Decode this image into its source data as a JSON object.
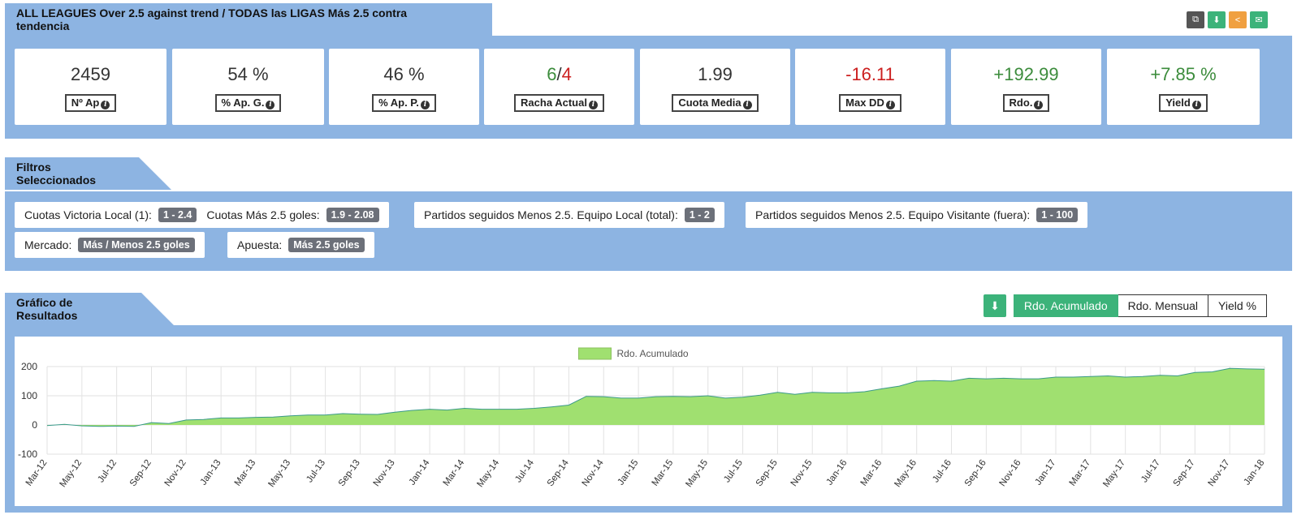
{
  "header": {
    "title": "ALL LEAGUES Over 2.5 against trend / TODAS las LIGAS Más 2.5 contra tendencia",
    "icons": [
      "copy-icon",
      "download-icon",
      "share-icon",
      "email-icon"
    ],
    "icon_colors": [
      "#555555",
      "#3cb37a",
      "#f0a040",
      "#3cb37a"
    ]
  },
  "stats": [
    {
      "value": "2459",
      "label": "Nº Ap"
    },
    {
      "value": "54 %",
      "label": "% Ap. G."
    },
    {
      "value": "46 %",
      "label": "% Ap. P."
    },
    {
      "value_a": "6",
      "sep": "/",
      "value_b": "4",
      "label": "Racha Actual"
    },
    {
      "value": "1.99",
      "label": "Cuota Media"
    },
    {
      "value": "-16.11",
      "label": "Max DD"
    },
    {
      "value": "+192.99",
      "label": "Rdo."
    },
    {
      "value": "+7.85 %",
      "label": "Yield"
    }
  ],
  "filters": {
    "title": "Filtros Seleccionados",
    "chips": [
      {
        "parts": [
          {
            "label": "Cuotas Victoria Local (1):",
            "value": "1 - 2.4"
          },
          {
            "label": "Cuotas Más 2.5 goles:",
            "value": "1.9 - 2.08"
          }
        ]
      },
      {
        "parts": [
          {
            "label": "Partidos seguidos Menos 2.5. Equipo Local (total):",
            "value": "1 - 2"
          }
        ]
      },
      {
        "parts": [
          {
            "label": "Partidos seguidos Menos 2.5. Equipo Visitante (fuera):",
            "value": "1 - 100"
          }
        ]
      },
      {
        "parts": [
          {
            "label": "Mercado:",
            "value": "Más / Menos 2.5 goles"
          }
        ]
      },
      {
        "parts": [
          {
            "label": "Apuesta:",
            "value": "Más 2.5 goles"
          }
        ]
      }
    ]
  },
  "results": {
    "title": "Gráfico de Resultados",
    "buttons": [
      "Rdo. Acumulado",
      "Rdo. Mensual",
      "Yield %"
    ],
    "active_button": "Rdo. Acumulado"
  },
  "chart_data": {
    "type": "area",
    "legend": "Rdo. Acumulado",
    "legend_position": "top-center",
    "series_color": "#a0e070",
    "ylim": [
      -100,
      200
    ],
    "yticks": [
      200,
      100,
      0,
      -100
    ],
    "grid": true,
    "x_tick_labels": [
      "Mar-12",
      "May-12",
      "Jul-12",
      "Sep-12",
      "Nov-12",
      "Jan-13",
      "Mar-13",
      "May-13",
      "Jul-13",
      "Sep-13",
      "Nov-13",
      "Jan-14",
      "Mar-14",
      "May-14",
      "Jul-14",
      "Sep-14",
      "Nov-14",
      "Jan-15",
      "Mar-15",
      "May-15",
      "Jul-15",
      "Sep-15",
      "Nov-15",
      "Jan-16",
      "Mar-16",
      "May-16",
      "Jul-16",
      "Sep-16",
      "Nov-16",
      "Jan-17",
      "Mar-17",
      "May-17",
      "Jul-17",
      "Sep-17",
      "Nov-17",
      "Jan-18"
    ],
    "values": [
      -2,
      2,
      -3,
      -5,
      -4,
      -5,
      8,
      5,
      17,
      19,
      24,
      24,
      26,
      27,
      31,
      34,
      34,
      39,
      37,
      36,
      44,
      50,
      54,
      51,
      57,
      54,
      54,
      54,
      57,
      62,
      68,
      98,
      97,
      92,
      92,
      97,
      98,
      97,
      100,
      92,
      95,
      102,
      112,
      105,
      112,
      110,
      110,
      114,
      124,
      133,
      150,
      152,
      150,
      160,
      158,
      160,
      158,
      158,
      164,
      164,
      166,
      168,
      164,
      166,
      170,
      168,
      180,
      182,
      194,
      192,
      191
    ]
  }
}
